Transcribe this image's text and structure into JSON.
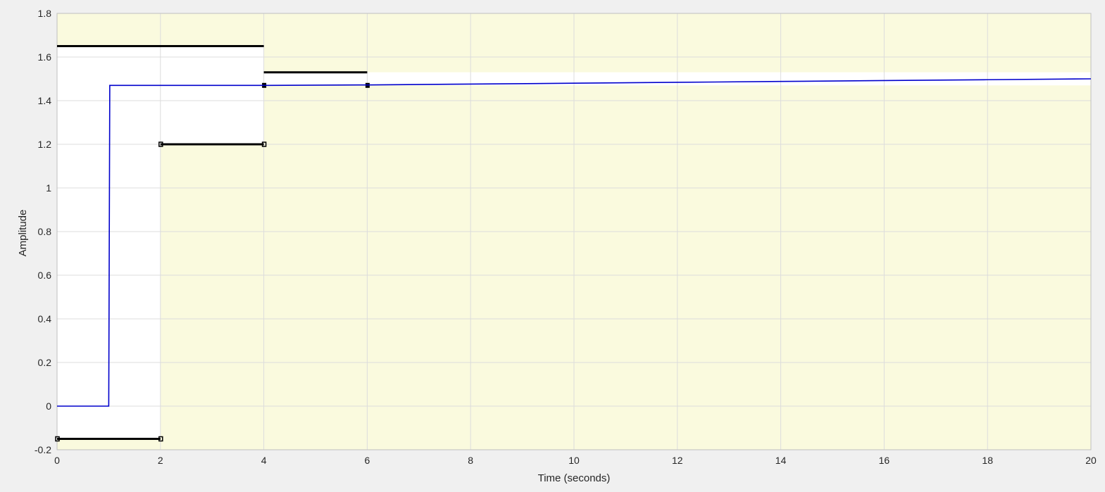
{
  "chart_data": {
    "type": "line",
    "title": "",
    "xlabel": "Time (seconds)",
    "ylabel": "Amplitude",
    "xlim": [
      0,
      20
    ],
    "ylim": [
      -0.2,
      1.8
    ],
    "xticks": [
      "0",
      "2",
      "4",
      "6",
      "8",
      "10",
      "12",
      "14",
      "16",
      "18",
      "20"
    ],
    "yticks": [
      "-0.2",
      "0",
      "0.2",
      "0.4",
      "0.6",
      "0.8",
      "1",
      "1.2",
      "1.4",
      "1.6",
      "1.8"
    ],
    "grid": true,
    "background_color": "#ffffff",
    "bound_region_color": "#fafade",
    "series": [
      {
        "color": "#0000cc",
        "x": [
          0,
          1,
          1.02,
          4,
          6,
          8,
          10,
          12,
          14,
          16,
          18,
          20
        ],
        "y": [
          0,
          0,
          1.47,
          1.47,
          1.472,
          1.476,
          1.48,
          1.484,
          1.488,
          1.492,
          1.496,
          1.5
        ]
      }
    ],
    "upper_bounds": [
      {
        "x": [
          0,
          4
        ],
        "y": 1.65
      },
      {
        "x": [
          4,
          6
        ],
        "y": 1.53
      },
      {
        "x": [
          6,
          20
        ],
        "y": 1.53
      }
    ],
    "lower_bounds": [
      {
        "x": [
          0,
          2
        ],
        "y": -0.15
      },
      {
        "x": [
          2,
          4
        ],
        "y": 1.2
      },
      {
        "x": [
          4,
          20
        ],
        "y": 1.47
      }
    ]
  }
}
